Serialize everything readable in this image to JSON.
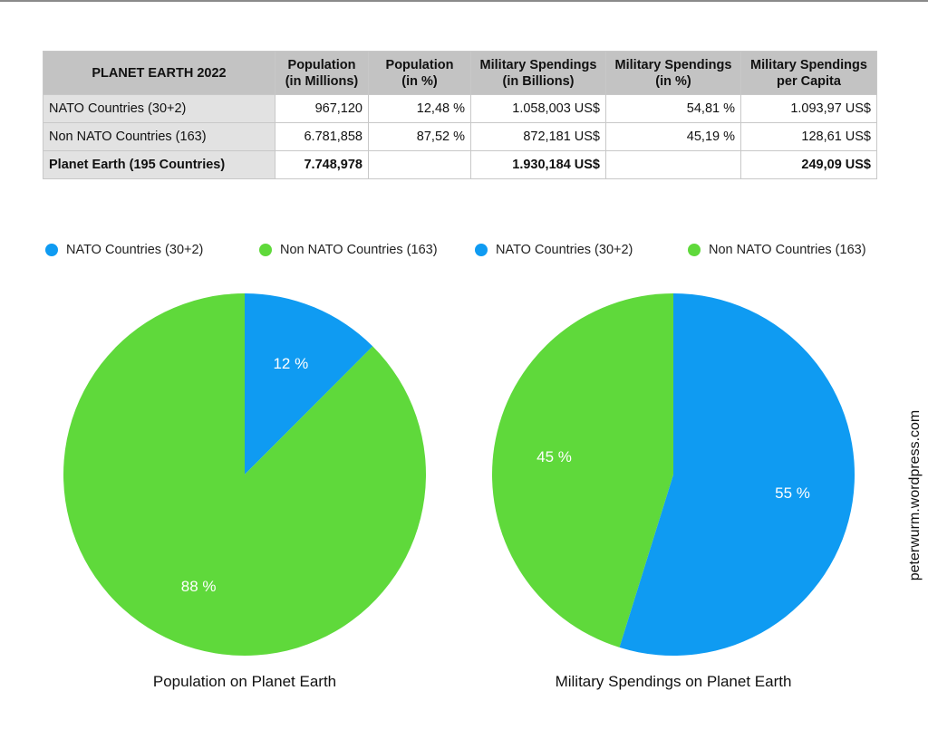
{
  "table": {
    "headers": [
      "PLANET EARTH 2022",
      "Population\n(in Millions)",
      "Population\n(in %)",
      "Military Spendings\n(in Billions)",
      "Military Spendings\n(in %)",
      "Military Spendings\nper Capita"
    ],
    "rows": [
      [
        "NATO Countries (30+2)",
        "967,120",
        "12,48 %",
        "1.058,003 US$",
        "54,81 %",
        "1.093,97 US$"
      ],
      [
        "Non NATO Countries (163)",
        "6.781,858",
        "87,52 %",
        "872,181 US$",
        "45,19 %",
        "128,61 US$"
      ],
      [
        "Planet Earth (195 Countries)",
        "7.748,978",
        "",
        "1.930,184 US$",
        "",
        "249,09 US$"
      ]
    ]
  },
  "colors": {
    "nato": "#0f9bf2",
    "non_nato": "#5fd93b"
  },
  "chart_data": [
    {
      "type": "pie",
      "title": "Population on Planet Earth",
      "categories": [
        "NATO Countries (30+2)",
        "Non NATO Countries (163)"
      ],
      "values": [
        12.48,
        87.52
      ],
      "labels": [
        "12 %",
        "88 %"
      ],
      "legend": "top"
    },
    {
      "type": "pie",
      "title": "Military Spendings on Planet Earth",
      "categories": [
        "NATO Countries (30+2)",
        "Non NATO Countries (163)"
      ],
      "values": [
        54.81,
        45.19
      ],
      "labels": [
        "55 %",
        "45 %"
      ],
      "legend": "top"
    }
  ],
  "watermark": "peterwurm.wordpress.com"
}
